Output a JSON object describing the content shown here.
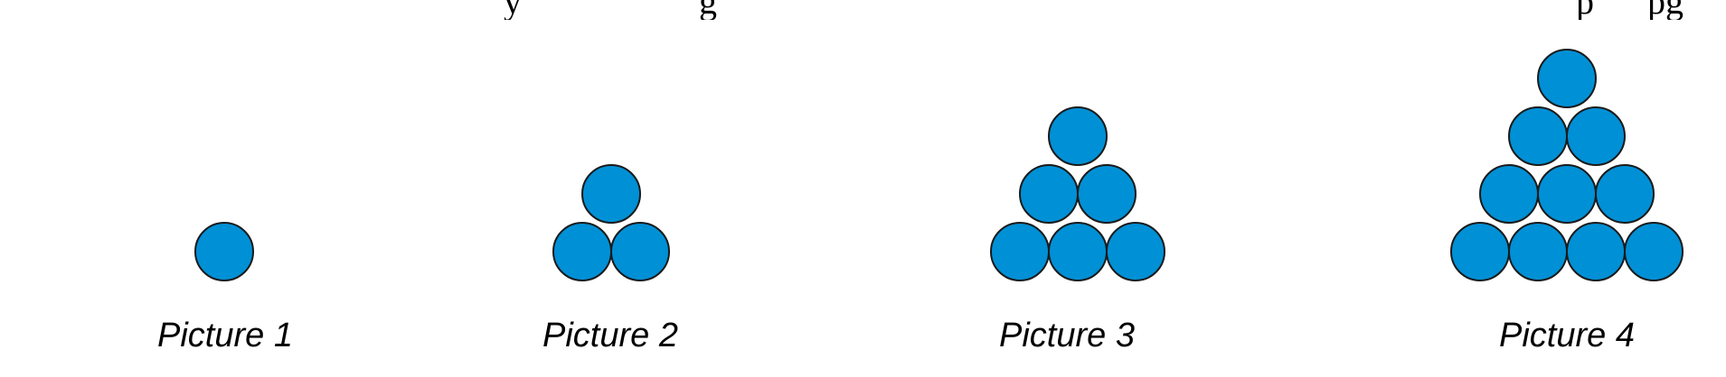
{
  "header_fragments": [
    {
      "text": "y",
      "pos": "left"
    },
    {
      "text": "g",
      "pos": "left-mid"
    },
    {
      "text": "p",
      "pos": "right"
    },
    {
      "text": "pg",
      "pos": "far-right"
    }
  ],
  "circle_color": "#0090d6",
  "pictures": [
    {
      "label": "Picture 1",
      "rows": [
        1
      ]
    },
    {
      "label": "Picture 2",
      "rows": [
        1,
        2
      ]
    },
    {
      "label": "Picture 3",
      "rows": [
        1,
        2,
        3
      ]
    },
    {
      "label": "Picture 4",
      "rows": [
        1,
        2,
        3,
        4
      ]
    }
  ]
}
